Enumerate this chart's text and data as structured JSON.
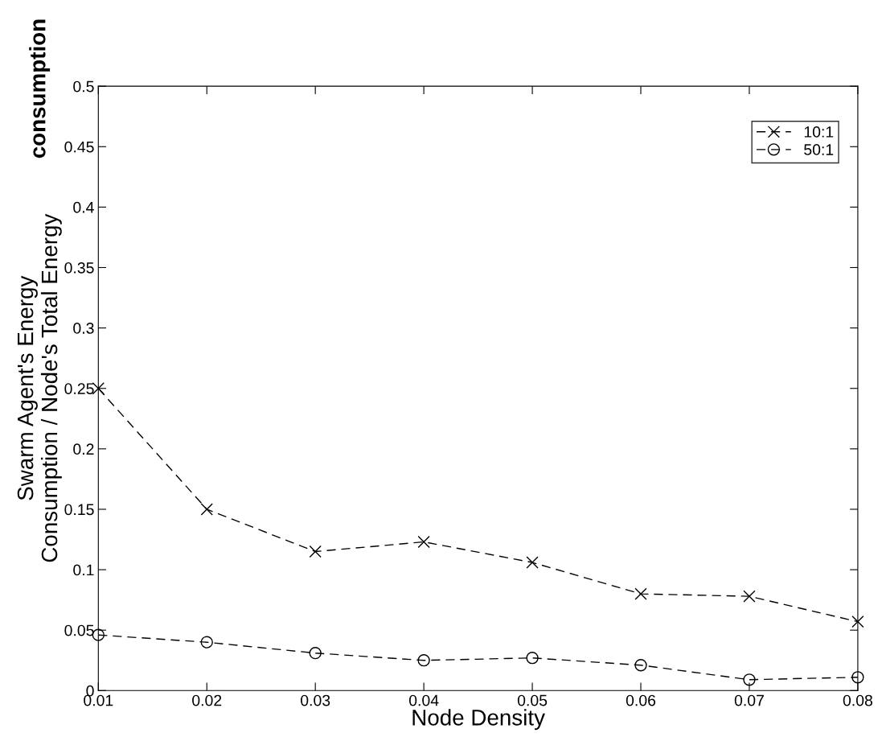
{
  "chart_data": {
    "type": "line",
    "xlabel": "Node Density",
    "ylabel": "Swarm Agent's Energy\nConsumption / Node's Total Energy",
    "annotations": [
      "consumption"
    ],
    "x": [
      0.01,
      0.02,
      0.03,
      0.04,
      0.05,
      0.06,
      0.07,
      0.08
    ],
    "series": [
      {
        "name": "10:1",
        "color": "#000000",
        "marker": "cross",
        "values": [
          0.25,
          0.15,
          0.115,
          0.123,
          0.106,
          0.08,
          0.078,
          0.057
        ]
      },
      {
        "name": "50:1",
        "color": "#000000",
        "marker": "circle",
        "values": [
          0.046,
          0.04,
          0.031,
          0.025,
          0.027,
          0.021,
          0.009,
          0.011
        ]
      }
    ],
    "line_style": "dashed",
    "xlim": [
      0.01,
      0.08
    ],
    "xticks": [
      0.01,
      0.02,
      0.03,
      0.04,
      0.05,
      0.06,
      0.07,
      0.08
    ],
    "ylim": [
      0,
      0.5
    ],
    "yticks": [
      0,
      0.05,
      0.1,
      0.15,
      0.2,
      0.25,
      0.3,
      0.35,
      0.4,
      0.45,
      0.5
    ],
    "grid": false,
    "legend": "top right"
  }
}
